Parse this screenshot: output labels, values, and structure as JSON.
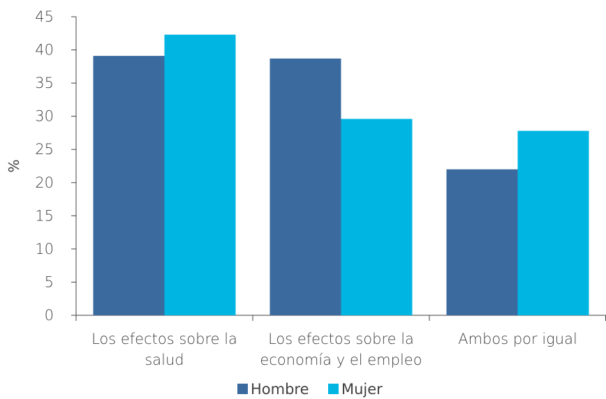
{
  "chart_data": {
    "type": "bar",
    "ylabel": "%",
    "ylim": [
      0,
      45
    ],
    "yticks": [
      0,
      5,
      10,
      15,
      20,
      25,
      30,
      35,
      40,
      45
    ],
    "categories": [
      [
        "Los efectos sobre la",
        "salud"
      ],
      [
        "Los efectos sobre la",
        "economía y el empleo"
      ],
      [
        "Ambos por igual"
      ]
    ],
    "series": [
      {
        "name": "Hombre",
        "color": "#3b6a9e",
        "values": [
          39.1,
          38.7,
          22.0
        ]
      },
      {
        "name": "Mujer",
        "color": "#00b5e2",
        "values": [
          42.3,
          29.6,
          27.8
        ]
      }
    ],
    "grid": false,
    "legend": "bottom"
  }
}
